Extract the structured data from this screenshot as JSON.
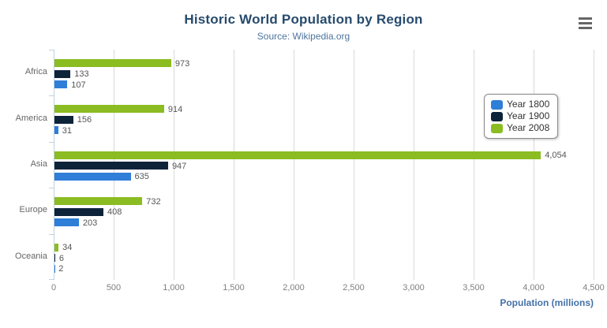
{
  "header": {
    "title": "Historic World Population by Region",
    "subtitle": "Source: Wikipedia.org"
  },
  "toolbar": {
    "menu_icon": "hamburger-menu"
  },
  "chart_data": {
    "type": "bar",
    "title": "Historic World Population by Region",
    "subtitle": "Source: Wikipedia.org",
    "categories": [
      "Africa",
      "America",
      "Asia",
      "Europe",
      "Oceania"
    ],
    "series": [
      {
        "name": "Year 1800",
        "color": "#2f7ed8",
        "values": [
          107,
          31,
          635,
          203,
          2
        ]
      },
      {
        "name": "Year 1900",
        "color": "#0d233a",
        "values": [
          133,
          156,
          947,
          408,
          6
        ]
      },
      {
        "name": "Year 2008",
        "color": "#8bbc21",
        "values": [
          973,
          914,
          4054,
          732,
          34
        ]
      }
    ],
    "row_order_top_to_bottom": [
      "Year 2008",
      "Year 1900",
      "Year 1800"
    ],
    "xlabel": "Population (millions)",
    "ylabel": "",
    "xlim": [
      0,
      4500
    ],
    "x_ticks": [
      0,
      500,
      1000,
      1500,
      2000,
      2500,
      3000,
      3500,
      4000,
      4500
    ],
    "x_tick_labels": [
      "0",
      "500",
      "1,000",
      "1,500",
      "2,000",
      "2,500",
      "3,000",
      "3,500",
      "4,000",
      "4,500"
    ],
    "grid": true,
    "data_labels": true,
    "legend_position": "right-middle"
  },
  "legend": {
    "items": [
      {
        "label": "Year 1800",
        "color": "#2f7ed8"
      },
      {
        "label": "Year 1900",
        "color": "#0d233a"
      },
      {
        "label": "Year 2008",
        "color": "#8bbc21"
      }
    ]
  },
  "colors": {
    "title": "#274b6d",
    "subtitle": "#4d759e",
    "axis_title": "#4572a7",
    "category_label": "#666666",
    "tick_label": "#808080",
    "data_label": "#555555",
    "grid_line": "#d8d8d8",
    "axis_line": "#c0d0e0",
    "legend_border": "#8a8a8a",
    "menu_icon": "#666666",
    "series_blue": "#2f7ed8",
    "series_navy": "#0d233a",
    "series_green": "#8bbc21"
  }
}
